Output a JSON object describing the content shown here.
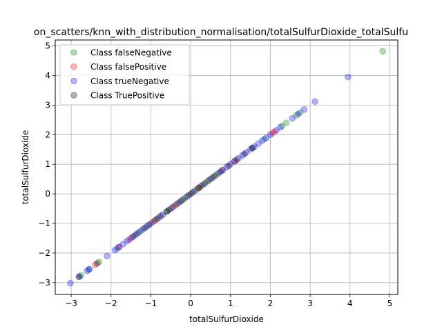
{
  "chart_data": {
    "type": "scatter",
    "title": "on_scatters/knn_with_distribution_normalisation/totalSulfurDioxide_totalSulfu",
    "xlabel": "totalSulfurDioxide",
    "ylabel": "totalSulfurDioxide",
    "xlim": [
      -3.4,
      5.2
    ],
    "ylim": [
      -3.4,
      5.2
    ],
    "xticks": [
      -3,
      -2,
      -1,
      0,
      1,
      2,
      3,
      4,
      5
    ],
    "yticks": [
      -3,
      -2,
      -1,
      0,
      1,
      2,
      3,
      4,
      5
    ],
    "grid": true,
    "legend_position": "top-left",
    "series": [
      {
        "name": "Class falseNegative",
        "color": "#008000",
        "values": [
          [
            4.82,
            4.82
          ],
          [
            2.75,
            2.75
          ],
          [
            2.65,
            2.65
          ],
          [
            2.4,
            2.4
          ],
          [
            2.3,
            2.3
          ],
          [
            1.85,
            1.85
          ],
          [
            1.55,
            1.55
          ],
          [
            0.65,
            0.65
          ],
          [
            0.4,
            0.4
          ],
          [
            0.15,
            0.15
          ],
          [
            -0.15,
            -0.15
          ],
          [
            -0.6,
            -0.6
          ],
          [
            -1.25,
            -1.25
          ],
          [
            -1.85,
            -1.85
          ],
          [
            -2.3,
            -2.3
          ],
          [
            -2.55,
            -2.55
          ],
          [
            -2.75,
            -2.75
          ]
        ]
      },
      {
        "name": "Class falsePositive",
        "color": "#ff0000",
        "values": [
          [
            2.1,
            2.1
          ],
          [
            2.05,
            2.05
          ],
          [
            1.1,
            1.1
          ],
          [
            0.8,
            0.8
          ],
          [
            0.2,
            0.2
          ],
          [
            -0.4,
            -0.4
          ],
          [
            -0.95,
            -0.95
          ],
          [
            -1.55,
            -1.55
          ],
          [
            -1.8,
            -1.8
          ],
          [
            -2.4,
            -2.4
          ]
        ]
      },
      {
        "name": "Class trueNegative",
        "color": "#0000ff",
        "values": [
          [
            3.95,
            3.95
          ],
          [
            3.12,
            3.12
          ],
          [
            2.85,
            2.85
          ],
          [
            2.7,
            2.7
          ],
          [
            2.55,
            2.55
          ],
          [
            2.25,
            2.25
          ],
          [
            2.15,
            2.15
          ],
          [
            2.0,
            2.0
          ],
          [
            1.9,
            1.9
          ],
          [
            1.8,
            1.8
          ],
          [
            1.7,
            1.7
          ],
          [
            1.6,
            1.6
          ],
          [
            1.5,
            1.5
          ],
          [
            1.4,
            1.4
          ],
          [
            1.3,
            1.3
          ],
          [
            1.2,
            1.2
          ],
          [
            1.1,
            1.1
          ],
          [
            1.0,
            1.0
          ],
          [
            0.9,
            0.9
          ],
          [
            0.8,
            0.8
          ],
          [
            0.7,
            0.7
          ],
          [
            0.5,
            0.5
          ],
          [
            0.3,
            0.3
          ],
          [
            0.1,
            0.1
          ],
          [
            -0.1,
            -0.1
          ],
          [
            -0.3,
            -0.3
          ],
          [
            -0.5,
            -0.5
          ],
          [
            -0.7,
            -0.7
          ],
          [
            -0.8,
            -0.8
          ],
          [
            -1.0,
            -1.0
          ],
          [
            -1.1,
            -1.1
          ],
          [
            -1.2,
            -1.2
          ],
          [
            -1.3,
            -1.3
          ],
          [
            -1.4,
            -1.4
          ],
          [
            -1.5,
            -1.5
          ],
          [
            -1.6,
            -1.6
          ],
          [
            -1.7,
            -1.7
          ],
          [
            -1.8,
            -1.8
          ],
          [
            -1.9,
            -1.9
          ],
          [
            -2.1,
            -2.1
          ],
          [
            -2.55,
            -2.55
          ],
          [
            -2.6,
            -2.6
          ],
          [
            -2.8,
            -2.8
          ],
          [
            -3.02,
            -3.02
          ]
        ]
      },
      {
        "name": "Class TruePositive",
        "color": "#000000",
        "values": [
          [
            1.55,
            1.55
          ],
          [
            1.35,
            1.35
          ],
          [
            1.15,
            1.15
          ],
          [
            0.95,
            0.95
          ],
          [
            0.75,
            0.75
          ],
          [
            0.6,
            0.6
          ],
          [
            0.55,
            0.55
          ],
          [
            0.45,
            0.45
          ],
          [
            0.35,
            0.35
          ],
          [
            0.25,
            0.25
          ],
          [
            0.2,
            0.2
          ],
          [
            0.05,
            0.05
          ],
          [
            0.0,
            0.0
          ],
          [
            -0.05,
            -0.05
          ],
          [
            -0.2,
            -0.2
          ],
          [
            -0.25,
            -0.25
          ],
          [
            -0.35,
            -0.35
          ],
          [
            -0.45,
            -0.45
          ],
          [
            -0.55,
            -0.55
          ],
          [
            -0.6,
            -0.6
          ],
          [
            -0.75,
            -0.75
          ],
          [
            -0.85,
            -0.85
          ],
          [
            -0.9,
            -0.9
          ],
          [
            -1.05,
            -1.05
          ],
          [
            -1.15,
            -1.15
          ],
          [
            -1.35,
            -1.35
          ],
          [
            -1.45,
            -1.45
          ],
          [
            -2.35,
            -2.35
          ],
          [
            -2.8,
            -2.8
          ]
        ]
      }
    ]
  }
}
